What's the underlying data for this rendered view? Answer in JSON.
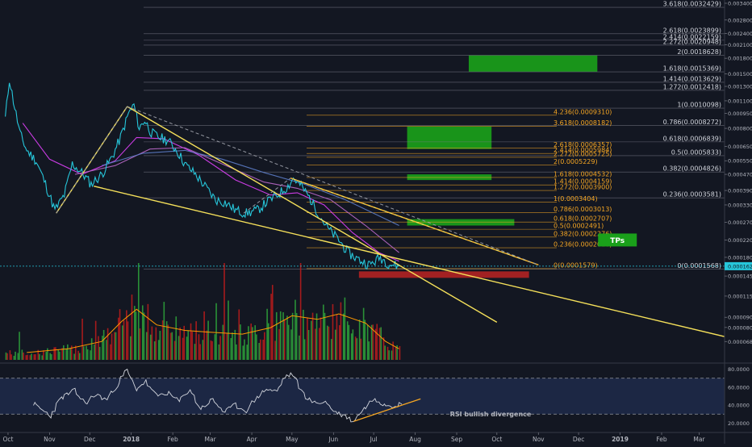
{
  "chart_data": {
    "type": "line",
    "scale": "log",
    "ylim": [
      5.5e-05,
      0.0034
    ],
    "xlim": [
      "2017-09-25",
      "2019-03-20"
    ],
    "x_ticks": [
      {
        "date": "2017-10-01",
        "label": "Oct"
      },
      {
        "date": "2017-11-01",
        "label": "Nov"
      },
      {
        "date": "2017-12-01",
        "label": "Dec"
      },
      {
        "date": "2018-01-01",
        "label": "2018"
      },
      {
        "date": "2018-02-01",
        "label": "Feb"
      },
      {
        "date": "2018-03-01",
        "label": "Mar"
      },
      {
        "date": "2018-04-01",
        "label": "Apr"
      },
      {
        "date": "2018-05-01",
        "label": "May"
      },
      {
        "date": "2018-06-01",
        "label": "Jun"
      },
      {
        "date": "2018-07-01",
        "label": "Jul"
      },
      {
        "date": "2018-08-01",
        "label": "Aug"
      },
      {
        "date": "2018-09-01",
        "label": "Sep"
      },
      {
        "date": "2018-10-01",
        "label": "Oct"
      },
      {
        "date": "2018-11-01",
        "label": "Nov"
      },
      {
        "date": "2018-12-01",
        "label": "Dec"
      },
      {
        "date": "2019-01-01",
        "label": "2019"
      },
      {
        "date": "2019-02-01",
        "label": "Feb"
      },
      {
        "date": "2019-03-01",
        "label": "Mar"
      }
    ],
    "y_ticks": [
      "0.0034000",
      "0.0028000",
      "0.0024000",
      "0.0021000",
      "0.0018000",
      "0.0015000",
      "0.0013000",
      "0.0011000",
      "0.0009500",
      "0.0008000",
      "0.0006500",
      "0.0005500",
      "0.0004700",
      "0.0003900",
      "0.0003300",
      "0.0002700",
      "0.0002200",
      "0.0001800",
      "0.0001450",
      "0.0001150",
      "0.0000900",
      "0.0000800",
      "0.0000680"
    ],
    "y_tick_values": [
      0.0034,
      0.0028,
      0.0024,
      0.0021,
      0.0018,
      0.0015,
      0.0013,
      0.0011,
      0.00095,
      0.0008,
      0.00065,
      0.00055,
      0.00047,
      0.00039,
      0.00033,
      0.00027,
      0.00022,
      0.00018,
      0.000145,
      0.000115,
      9e-05,
      8e-05,
      6.8e-05
    ],
    "price_marker": {
      "label": "0.0001625",
      "value": 0.0001625
    },
    "price_series": {
      "name": "price",
      "color": "#26c6da",
      "points": [
        [
          "2017-09-29",
          0.0009
        ],
        [
          "2017-10-02",
          0.00142
        ],
        [
          "2017-10-05",
          0.0011
        ],
        [
          "2017-10-10",
          0.00075
        ],
        [
          "2017-10-15",
          0.00062
        ],
        [
          "2017-10-22",
          0.00055
        ],
        [
          "2017-10-29",
          0.00042
        ],
        [
          "2017-11-05",
          0.00031
        ],
        [
          "2017-11-12",
          0.00037
        ],
        [
          "2017-11-18",
          0.00053
        ],
        [
          "2017-11-25",
          0.00048
        ],
        [
          "2017-12-02",
          0.00042
        ],
        [
          "2017-12-10",
          0.00047
        ],
        [
          "2017-12-18",
          0.00058
        ],
        [
          "2017-12-24",
          0.00072
        ],
        [
          "2017-12-30",
          0.00095
        ],
        [
          "2018-01-03",
          0.00105
        ],
        [
          "2018-01-07",
          0.0008
        ],
        [
          "2018-01-11",
          0.00088
        ],
        [
          "2018-01-16",
          0.00076
        ],
        [
          "2018-01-22",
          0.00072
        ],
        [
          "2018-01-28",
          0.0007
        ],
        [
          "2018-02-04",
          0.00062
        ],
        [
          "2018-02-11",
          0.00052
        ],
        [
          "2018-02-18",
          0.00047
        ],
        [
          "2018-02-25",
          0.00041
        ],
        [
          "2018-03-05",
          0.00035
        ],
        [
          "2018-03-12",
          0.00034
        ],
        [
          "2018-03-20",
          0.00031
        ],
        [
          "2018-03-28",
          0.0003
        ],
        [
          "2018-04-05",
          0.00031
        ],
        [
          "2018-04-12",
          0.00034
        ],
        [
          "2018-04-20",
          0.00037
        ],
        [
          "2018-04-28",
          0.00041
        ],
        [
          "2018-05-02",
          0.00045
        ],
        [
          "2018-05-08",
          0.00041
        ],
        [
          "2018-05-14",
          0.00036
        ],
        [
          "2018-05-22",
          0.00029
        ],
        [
          "2018-05-28",
          0.00025
        ],
        [
          "2018-06-05",
          0.00022
        ],
        [
          "2018-06-12",
          0.00019
        ],
        [
          "2018-06-20",
          0.000175
        ],
        [
          "2018-06-28",
          0.000165
        ],
        [
          "2018-07-06",
          0.00018
        ],
        [
          "2018-07-12",
          0.000168
        ],
        [
          "2018-07-20",
          0.000162
        ]
      ]
    },
    "ma_series": [
      {
        "color": "#e040fb",
        "points": [
          [
            "2017-10-12",
            0.00085
          ],
          [
            "2017-11-01",
            0.00056
          ],
          [
            "2017-11-25",
            0.00047
          ],
          [
            "2017-12-20",
            0.00055
          ],
          [
            "2018-01-05",
            0.00072
          ],
          [
            "2018-01-25",
            0.00071
          ],
          [
            "2018-02-20",
            0.00059
          ],
          [
            "2018-03-20",
            0.00044
          ],
          [
            "2018-04-15",
            0.00037
          ],
          [
            "2018-05-05",
            0.00038
          ],
          [
            "2018-05-25",
            0.00033
          ],
          [
            "2018-06-15",
            0.00024
          ],
          [
            "2018-07-05",
            0.00019
          ],
          [
            "2018-07-20",
            0.000172
          ]
        ]
      },
      {
        "color": "#ba68c8",
        "points": [
          [
            "2017-11-20",
            0.00047
          ],
          [
            "2017-12-20",
            0.00052
          ],
          [
            "2018-01-15",
            0.00063
          ],
          [
            "2018-02-10",
            0.00064
          ],
          [
            "2018-03-10",
            0.00053
          ],
          [
            "2018-04-10",
            0.00043
          ],
          [
            "2018-05-05",
            0.0004
          ],
          [
            "2018-05-30",
            0.00035
          ],
          [
            "2018-06-25",
            0.00026
          ],
          [
            "2018-07-20",
            0.00019
          ]
        ]
      },
      {
        "color": "#5c7cc7",
        "points": [
          [
            "2017-12-10",
            0.00052
          ],
          [
            "2018-01-10",
            0.0006
          ],
          [
            "2018-02-10",
            0.00062
          ],
          [
            "2018-03-10",
            0.00056
          ],
          [
            "2018-04-10",
            0.00048
          ],
          [
            "2018-05-10",
            0.00042
          ],
          [
            "2018-06-10",
            0.00035
          ],
          [
            "2018-07-20",
            0.00026
          ]
        ]
      }
    ],
    "trendlines": [
      {
        "style": "solid",
        "color": "#f5e05a",
        "from": [
          "2017-11-06",
          0.0003
        ],
        "to": [
          "2017-12-29",
          0.00103
        ]
      },
      {
        "style": "solid",
        "color": "#f5e05a",
        "from": [
          "2017-12-29",
          0.00103
        ],
        "to": [
          "2018-10-01",
          8.5e-05
        ]
      },
      {
        "style": "solid",
        "color": "#f5e05a",
        "from": [
          "2017-12-04",
          0.00041
        ],
        "to": [
          "2019-03-20",
          7.2e-05
        ]
      },
      {
        "style": "solid",
        "color": "#f5e05a",
        "from": [
          "2018-04-30",
          0.00045
        ],
        "to": [
          "2018-11-01",
          0.000165
        ]
      },
      {
        "style": "dashed",
        "color": "#9598a1",
        "from": [
          "2017-11-06",
          0.0003
        ],
        "to": [
          "2017-12-29",
          0.00103
        ]
      },
      {
        "style": "dashed",
        "color": "#9598a1",
        "from": [
          "2017-12-29",
          0.00103
        ],
        "to": [
          "2018-11-01",
          0.000165
        ]
      },
      {
        "style": "dashed",
        "color": "#9598a1",
        "from": [
          "2018-03-26",
          0.0003
        ],
        "to": [
          "2018-04-30",
          0.00045
        ]
      },
      {
        "style": "dashed",
        "color": "#f5a623",
        "from": [
          "2018-04-30",
          0.00045
        ],
        "to": [
          "2018-11-01",
          0.000165
        ]
      }
    ],
    "fib_gray": {
      "color": "#787b86",
      "levels": [
        {
          "label": "3.618(0.0032429)",
          "value": 0.0032429
        },
        {
          "label": "2.618(0.0023899)",
          "value": 0.0023899
        },
        {
          "label": "2.414(0.0022159)",
          "value": 0.0022159
        },
        {
          "label": "2.272(0.0020948)",
          "value": 0.0020948
        },
        {
          "label": "2(0.0018628)",
          "value": 0.0018628
        },
        {
          "label": "1.618(0.0015369)",
          "value": 0.0015369
        },
        {
          "label": "1.414(0.0013629)",
          "value": 0.0013629
        },
        {
          "label": "1.272(0.0012418)",
          "value": 0.0012418
        },
        {
          "label": "1(0.0010098)",
          "value": 0.0010098
        },
        {
          "label": "0.786(0.0008272)",
          "value": 0.0008272
        },
        {
          "label": "0.618(0.0006839)",
          "value": 0.0006839
        },
        {
          "label": "0.5(0.0005833)",
          "value": 0.0005833
        },
        {
          "label": "0.382(0.0004826)",
          "value": 0.0004826
        },
        {
          "label": "0.236(0.0003581)",
          "value": 0.0003581
        },
        {
          "label": "0(0.0001568)",
          "value": 0.0001568
        }
      ]
    },
    "fib_orange": {
      "color": "#f5a623",
      "levels": [
        {
          "label": "4.236(0.0009310)",
          "value": 0.000931
        },
        {
          "label": "3.618(0.0008182)",
          "value": 0.0008182
        },
        {
          "label": "2.618(0.0006357)",
          "value": 0.0006357
        },
        {
          "label": "2.414(0.0005984)",
          "value": 0.0005984
        },
        {
          "label": "2.272(0.0005725)",
          "value": 0.0005725
        },
        {
          "label": "2(0.0005229)",
          "value": 0.0005229
        },
        {
          "label": "1.618(0.0004532)",
          "value": 0.0004532
        },
        {
          "label": "1.414(0.0004159)",
          "value": 0.0004159
        },
        {
          "label": "1.272(0.0003900)",
          "value": 0.00039
        },
        {
          "label": "1(0.0003404)",
          "value": 0.0003404
        },
        {
          "label": "0.786(0.0003013)",
          "value": 0.0003013
        },
        {
          "label": "0.618(0.0002707)",
          "value": 0.0002707
        },
        {
          "label": "0.5(0.0002491)",
          "value": 0.0002491
        },
        {
          "label": "0.382(0.0002276)",
          "value": 0.0002276
        },
        {
          "label": "0.236(0.0002010)",
          "value": 0.000201
        },
        {
          "label": "0(0.0001579)",
          "value": 0.0001579
        }
      ]
    },
    "zones": [
      {
        "kind": "target",
        "color": "#1aa01a",
        "from": "2018-09-10",
        "to": "2018-12-15",
        "low": 0.00154,
        "high": 0.00186
      },
      {
        "kind": "target",
        "color": "#1aa01a",
        "from": "2018-07-26",
        "to": "2018-09-27",
        "low": 0.00063,
        "high": 0.00082
      },
      {
        "kind": "target",
        "color": "#1aa01a",
        "from": "2018-07-26",
        "to": "2018-09-27",
        "low": 0.00044,
        "high": 0.00047
      },
      {
        "kind": "target",
        "color": "#1aa01a",
        "from": "2018-07-26",
        "to": "2018-10-14",
        "low": 0.00026,
        "high": 0.00028
      },
      {
        "kind": "support",
        "color": "#b22222",
        "from": "2018-06-20",
        "to": "2018-10-25",
        "low": 0.000142,
        "high": 0.000153
      }
    ],
    "annotations": [
      {
        "text": "TPs",
        "date": "2018-12-30",
        "value": 0.00022
      }
    ],
    "volume": {
      "max_display": 1.0,
      "note": "relative bar heights, alternating up/down colors",
      "up_color": "#26a69a",
      "down_color": "#c62828",
      "profile": [
        [
          "2017-10-15",
          0.08
        ],
        [
          "2017-11-15",
          0.12
        ],
        [
          "2017-12-10",
          0.2
        ],
        [
          "2017-12-25",
          0.42
        ],
        [
          "2018-01-05",
          0.55
        ],
        [
          "2018-01-20",
          0.38
        ],
        [
          "2018-02-10",
          0.32
        ],
        [
          "2018-03-01",
          0.3
        ],
        [
          "2018-03-25",
          0.28
        ],
        [
          "2018-04-15",
          0.35
        ],
        [
          "2018-05-01",
          0.48
        ],
        [
          "2018-05-20",
          0.44
        ],
        [
          "2018-06-05",
          0.5
        ],
        [
          "2018-06-25",
          0.4
        ],
        [
          "2018-07-10",
          0.2
        ],
        [
          "2018-07-20",
          0.12
        ]
      ],
      "ma_color": "#ff9800"
    },
    "rsi": {
      "ylim": [
        15,
        85
      ],
      "y_ticks": [
        "80.0000",
        "60.0000",
        "40.0000",
        "20.0000"
      ],
      "y_tick_values": [
        80,
        60,
        40,
        20
      ],
      "overbought": 70,
      "oversold": 30,
      "line_color": "#d1d4dc",
      "band_color": "#1f2a4a",
      "points": [
        [
          "2017-10-20",
          42
        ],
        [
          "2017-11-02",
          28
        ],
        [
          "2017-11-10",
          48
        ],
        [
          "2017-11-20",
          56
        ],
        [
          "2017-11-28",
          42
        ],
        [
          "2017-12-06",
          52
        ],
        [
          "2017-12-14",
          46
        ],
        [
          "2017-12-22",
          63
        ],
        [
          "2017-12-29",
          79
        ],
        [
          "2018-01-05",
          58
        ],
        [
          "2018-01-12",
          66
        ],
        [
          "2018-01-20",
          50
        ],
        [
          "2018-01-28",
          54
        ],
        [
          "2018-02-06",
          44
        ],
        [
          "2018-02-14",
          58
        ],
        [
          "2018-02-22",
          36
        ],
        [
          "2018-03-03",
          46
        ],
        [
          "2018-03-12",
          32
        ],
        [
          "2018-03-20",
          40
        ],
        [
          "2018-03-28",
          34
        ],
        [
          "2018-04-05",
          48
        ],
        [
          "2018-04-12",
          58
        ],
        [
          "2018-04-20",
          55
        ],
        [
          "2018-04-26",
          72
        ],
        [
          "2018-05-02",
          74
        ],
        [
          "2018-05-10",
          52
        ],
        [
          "2018-05-18",
          42
        ],
        [
          "2018-05-26",
          44
        ],
        [
          "2018-06-03",
          32
        ],
        [
          "2018-06-10",
          28
        ],
        [
          "2018-06-16",
          22
        ],
        [
          "2018-06-24",
          36
        ],
        [
          "2018-07-02",
          48
        ],
        [
          "2018-07-08",
          42
        ],
        [
          "2018-07-15",
          40
        ],
        [
          "2018-07-22",
          41
        ]
      ],
      "divergence_line": {
        "color": "#f5a623",
        "from": [
          "2018-06-16",
          22
        ],
        "to": [
          "2018-08-05",
          47
        ]
      },
      "annotation": "RSI bullish divergence"
    }
  }
}
